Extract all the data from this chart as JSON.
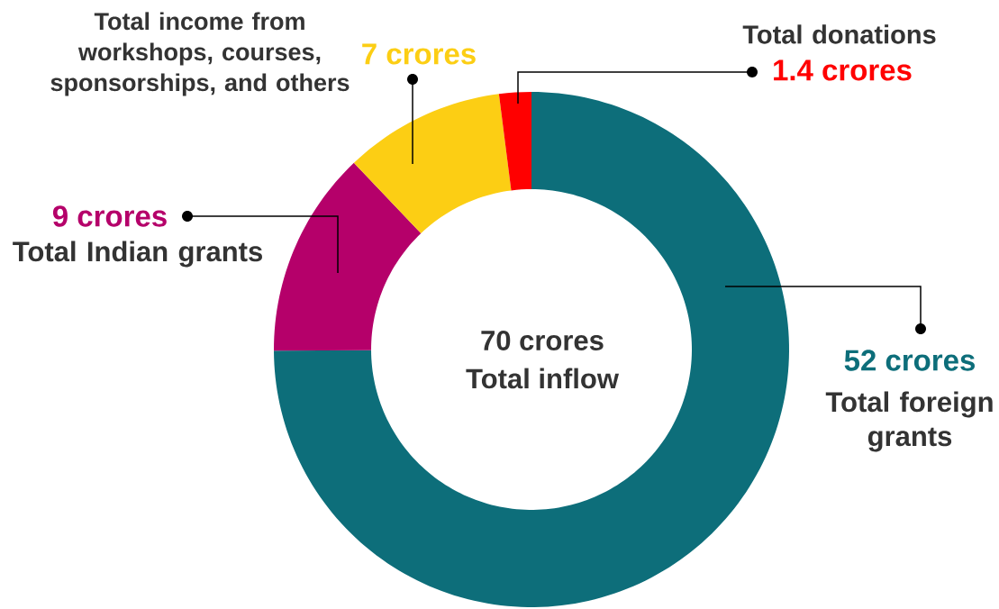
{
  "chart_data": {
    "type": "donut",
    "categories": [
      "Total foreign grants",
      "Total Indian grants",
      "Total income from workshops, courses, sponsorships, and others",
      "Total donations"
    ],
    "values": [
      52,
      9,
      7,
      1.4
    ],
    "colors": [
      "#0d6e7a",
      "#b5006a",
      "#fcce14",
      "#ff0000"
    ],
    "value_labels": [
      "52 crores",
      "9 crores",
      "7 crores",
      "1.4 crores"
    ],
    "annotations": [
      "70 crores",
      "Total inflow"
    ]
  }
}
